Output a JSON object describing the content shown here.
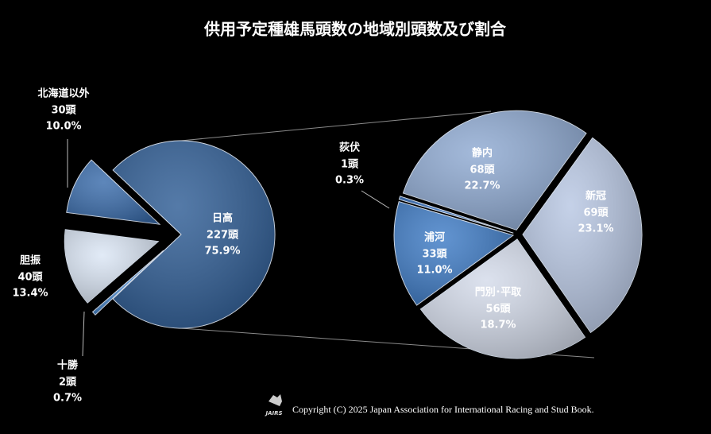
{
  "chart_data": [
    {
      "type": "pie",
      "title": "供用予定種雄馬頭数の地域別頭数及び割合",
      "categories": [
        "日高",
        "十勝",
        "胆振",
        "北海道以外"
      ],
      "values": [
        227,
        2,
        40,
        30
      ],
      "value_labels": [
        "227頭",
        "2頭",
        "40頭",
        "30頭"
      ],
      "percents": [
        75.9,
        0.7,
        13.4,
        10.0
      ],
      "percent_labels": [
        "75.9%",
        "0.7%",
        "13.4%",
        "10.0%"
      ],
      "colors": [
        "#2f5d95",
        "#4a8ad0",
        "#dbe6f5",
        "#3a6cab"
      ]
    },
    {
      "type": "pie",
      "categories": [
        "静内",
        "新冠",
        "門別･平取",
        "浦河",
        "荻伏"
      ],
      "values": [
        68,
        69,
        56,
        33,
        1
      ],
      "value_labels": [
        "68頭",
        "69頭",
        "56頭",
        "33頭",
        "1頭"
      ],
      "percents": [
        22.7,
        23.1,
        18.7,
        11.0,
        0.3
      ],
      "percent_labels": [
        "22.7%",
        "23.1%",
        "18.7%",
        "11.0%",
        "0.3%"
      ],
      "colors": [
        "#8faad2",
        "#b8c7e3",
        "#d4dbea",
        "#3f7cc6",
        "#2d66b3"
      ]
    }
  ],
  "footer": {
    "logo": "JAIRS",
    "copyright": "Copyright (C) 2025 Japan Association for International Racing and Stud Book."
  }
}
